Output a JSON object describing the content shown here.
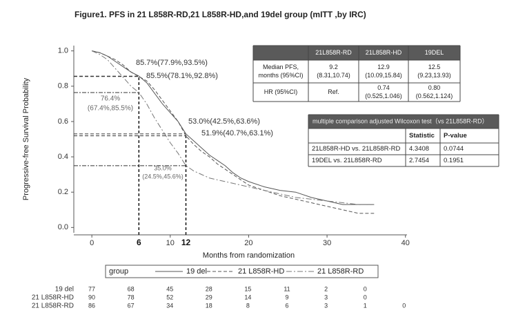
{
  "chart_data": {
    "type": "line",
    "title": "Figure1. PFS in 21 L858R-RD,21 L858R-HD,and 19del group (mITT ,by IRC)",
    "y_label": "Progressive-free Survival Probability",
    "x_label": "Months from randomization",
    "xlim": [
      -2.3,
      40.2
    ],
    "ylim": [
      -0.03,
      1.03
    ],
    "xticks": [
      0,
      10,
      20,
      30,
      40
    ],
    "yticks": [
      {
        "value": 0,
        "label": "0.0"
      },
      0.2,
      0.4,
      0.6,
      0.8,
      {
        "value": 1,
        "label": "1.0"
      }
    ],
    "x": [
      0,
      1,
      2,
      3,
      4,
      5,
      6,
      7,
      8,
      9,
      10,
      11,
      12,
      13,
      14,
      15,
      16,
      17,
      18,
      19,
      20,
      22,
      24,
      26,
      28,
      30,
      32,
      34,
      36
    ],
    "series": [
      {
        "name": "19 del",
        "color": "#555555",
        "dash": "solid",
        "values": [
          1,
          0.99,
          0.97,
          0.94,
          0.91,
          0.88,
          0.857,
          0.82,
          0.76,
          0.7,
          0.65,
          0.6,
          0.53,
          0.49,
          0.45,
          0.41,
          0.38,
          0.35,
          0.31,
          0.28,
          0.26,
          0.23,
          0.21,
          0.2,
          0.17,
          0.15,
          0.13,
          0.13,
          0.13
        ]
      },
      {
        "name": "21 L858R-HD",
        "color": "#555555",
        "dash": "dashed",
        "values": [
          1,
          0.99,
          0.97,
          0.95,
          0.92,
          0.88,
          0.855,
          0.83,
          0.78,
          0.72,
          0.66,
          0.6,
          0.519,
          0.47,
          0.43,
          0.4,
          0.36,
          0.33,
          0.3,
          0.27,
          0.24,
          0.21,
          0.18,
          0.16,
          0.14,
          0.12,
          0.1,
          0.08,
          0.08
        ]
      },
      {
        "name": "21 L858R-RD",
        "color": "#777777",
        "dash": "dashdot",
        "values": [
          1,
          0.98,
          0.95,
          0.9,
          0.85,
          0.8,
          0.764,
          0.7,
          0.62,
          0.55,
          0.48,
          0.42,
          0.35,
          0.32,
          0.3,
          0.28,
          0.27,
          0.26,
          0.25,
          0.24,
          0.23,
          0.21,
          0.19,
          0.17,
          0.16,
          0.15,
          0.14,
          0.13,
          0.13
        ]
      }
    ],
    "landmarks": [
      {
        "x": 6,
        "values": [
          0.857,
          0.855,
          0.764
        ]
      },
      {
        "x": 12,
        "values": [
          0.53,
          0.519,
          0.35
        ]
      }
    ],
    "annotations": [
      "85.7%(77.9%,93.5%)",
      "85.5%(78.1%,92.8%)",
      "76.4%",
      "(67.4%,85.5%)",
      "53.0%(42.5%,63.6%)",
      "51.9%(40.7%,63.1%)",
      "35.0%",
      "(24.5%,45.6%)"
    ],
    "legend_title": "group"
  },
  "median_table": {
    "header": [
      "21L858R-RD",
      "21L858R-HD",
      "19DEL"
    ],
    "rows": [
      {
        "label": [
          "Median PFS,",
          "months (95%CI)"
        ],
        "cells": [
          [
            "9.2",
            "(8.31,10.74)"
          ],
          [
            "12.9",
            "(10.09,15.84)"
          ],
          [
            "12.5",
            "(9.23,13.93)"
          ]
        ]
      },
      {
        "label": [
          "HR (95%CI)"
        ],
        "cells": [
          [
            "Ref."
          ],
          [
            "0.74",
            "(0.525,1.046)"
          ],
          [
            "0.80",
            "(0.562,1.124)"
          ]
        ]
      }
    ]
  },
  "wilcoxon_table": {
    "title": "multiple comparison adjusted Wilcoxon test（vs 21L858R-RD）",
    "header": [
      "Statistic",
      "P-value"
    ],
    "rows": [
      [
        "21L858R-HD vs. 21L858R-RD",
        "4.3408",
        "0.0744"
      ],
      [
        "19DEL vs. 21L858R-RD",
        "2.7454",
        "0.1951"
      ]
    ]
  },
  "risk_table": {
    "rows": [
      {
        "label": "19 del",
        "counts": [
          77,
          68,
          45,
          28,
          15,
          11,
          2,
          0,
          null
        ]
      },
      {
        "label": "21 L858R-HD",
        "counts": [
          90,
          78,
          52,
          29,
          14,
          9,
          3,
          0,
          null
        ]
      },
      {
        "label": "21 L858R-RD",
        "counts": [
          86,
          67,
          34,
          18,
          8,
          6,
          3,
          1,
          0
        ]
      }
    ]
  }
}
